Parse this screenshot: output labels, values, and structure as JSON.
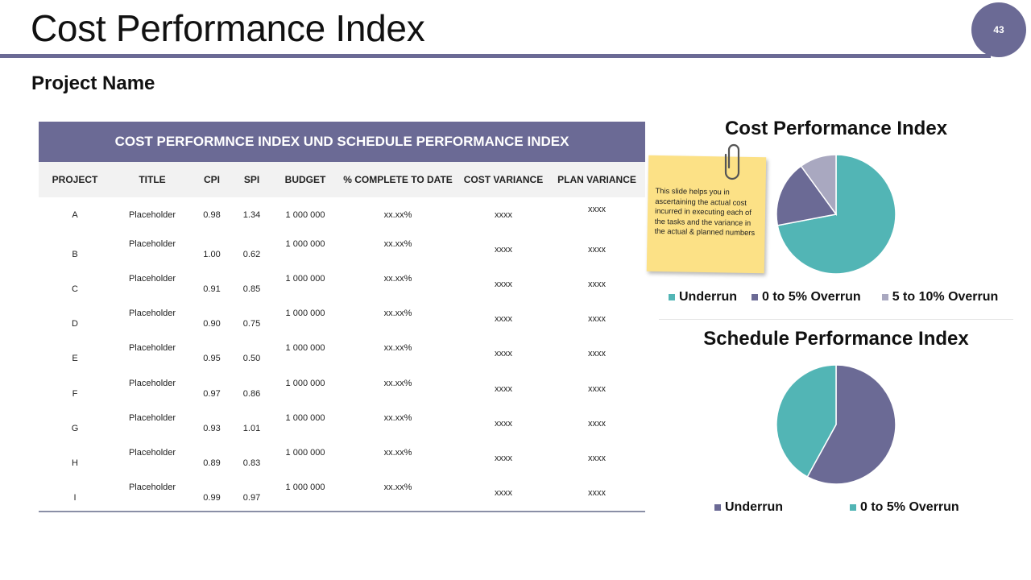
{
  "header": {
    "title": "Cost Performance Index",
    "page_number": "43",
    "subtitle": "Project Name"
  },
  "table": {
    "banner": "COST PERFORMNCE INDEX UND SCHEDULE PERFORMANCE INDEX",
    "columns": [
      "PROJECT",
      "TITLE",
      "CPI",
      "SPI",
      "BUDGET",
      "% COMPLETE TO DATE",
      "COST VARIANCE",
      "PLAN VARIANCE"
    ],
    "rows": [
      [
        "A",
        "Placeholder",
        "0.98",
        "1.34",
        "1 000 000",
        "xx.xx%",
        "xxxx",
        "xxxx"
      ],
      [
        "B",
        "Placeholder",
        "1.00",
        "0.62",
        "1 000 000",
        "xx.xx%",
        "xxxx",
        "xxxx"
      ],
      [
        "C",
        "Placeholder",
        "0.91",
        "0.85",
        "1 000 000",
        "xx.xx%",
        "xxxx",
        "xxxx"
      ],
      [
        "D",
        "Placeholder",
        "0.90",
        "0.75",
        "1 000 000",
        "xx.xx%",
        "xxxx",
        "xxxx"
      ],
      [
        "E",
        "Placeholder",
        "0.95",
        "0.50",
        "1 000 000",
        "xx.xx%",
        "xxxx",
        "xxxx"
      ],
      [
        "F",
        "Placeholder",
        "0.97",
        "0.86",
        "1 000 000",
        "xx.xx%",
        "xxxx",
        "xxxx"
      ],
      [
        "G",
        "Placeholder",
        "0.93",
        "1.01",
        "1 000 000",
        "xx.xx%",
        "xxxx",
        "xxxx"
      ],
      [
        "H",
        "Placeholder",
        "0.89",
        "0.83",
        "1 000 000",
        "xx.xx%",
        "xxxx",
        "xxxx"
      ],
      [
        "I",
        "Placeholder",
        "0.99",
        "0.97",
        "1 000 000",
        "xx.xx%",
        "xxxx",
        "xxxx"
      ]
    ]
  },
  "sticky_note": {
    "text": "This slide helps you in ascertaining the actual cost incurred in executing each of the tasks and the variance in the actual & planned numbers"
  },
  "colors": {
    "accent": "#6b6a95",
    "teal": "#52b5b5",
    "purple": "#6b6a95",
    "lavender": "#a9a8c0",
    "note": "#fce186"
  },
  "chart_data": [
    {
      "type": "pie",
      "title": "Cost Performance Index",
      "categories": [
        "Underrun",
        "0 to 5% Overrun",
        "5 to 10% Overrun"
      ],
      "values": [
        72,
        18,
        10
      ],
      "colors": [
        "#52b5b5",
        "#6b6a95",
        "#a9a8c0"
      ],
      "legend": "bottom"
    },
    {
      "type": "pie",
      "title": "Schedule Performance Index",
      "categories": [
        "Underrun",
        "0 to 5% Overrun"
      ],
      "values": [
        58,
        42
      ],
      "colors": [
        "#6b6a95",
        "#52b5b5"
      ],
      "legend": "bottom"
    }
  ]
}
